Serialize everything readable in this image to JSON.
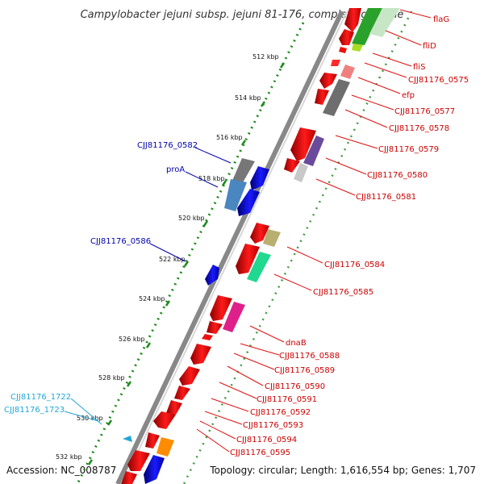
{
  "title": "Campylobacter jejuni subsp. jejuni 81-176, complete genome",
  "accession_text": "Accession: NC_008787",
  "topology_text": "Topology: circular; Length: 1,616,554 bp; Genes: 1,707",
  "colors": {
    "backbone": "#8c8c8c",
    "tick": "#1f8a1f",
    "forward_label": "#cc0000",
    "reverse_label": "#0000aa",
    "rna_label": "#22a6d6"
  },
  "kbp_labels": [
    "512 kbp",
    "514 kbp",
    "516 kbp",
    "518 kbp",
    "520 kbp",
    "522 kbp",
    "524 kbp",
    "526 kbp",
    "528 kbp",
    "530 kbp",
    "532 kbp"
  ],
  "right_labels": [
    "flaG",
    "fliD",
    "fliS",
    "CJJ81176_0575",
    "efp",
    "CJJ81176_0577",
    "CJJ81176_0578",
    "CJJ81176_0579",
    "CJJ81176_0580",
    "CJJ81176_0581",
    "CJJ81176_0584",
    "CJJ81176_0585",
    "dnaB",
    "CJJ81176_0588",
    "CJJ81176_0589",
    "CJJ81176_0590",
    "CJJ81176_0591",
    "CJJ81176_0592",
    "CJJ81176_0593",
    "CJJ81176_0594",
    "CJJ81176_0595"
  ],
  "left_labels": [
    "CJJ81176_0582",
    "proA",
    "CJJ81176_0586",
    "CJJ81176_1722",
    "CJJ81176_1723"
  ]
}
